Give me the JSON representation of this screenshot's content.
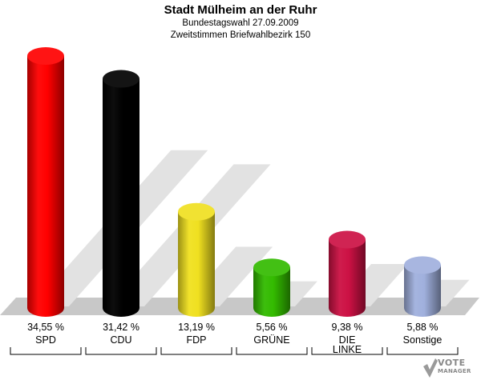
{
  "header": {
    "title": "Stadt Mülheim an der Ruhr",
    "subtitle1": "Bundestagswahl 27.09.2009",
    "subtitle2": "Zweitstimmen Briefwahlbezirk 150"
  },
  "logo": {
    "line1": "VOTE",
    "line2": "MANAGER"
  },
  "chart_data": {
    "type": "bar",
    "title": "Stadt Mülheim an der Ruhr",
    "subtitle": [
      "Bundestagswahl 27.09.2009",
      "Zweitstimmen Briefwahlbezirk 150"
    ],
    "categories": [
      "SPD",
      "CDU",
      "FDP",
      "GRÜNE",
      "DIE LINKE",
      "Sonstige"
    ],
    "values": [
      34.55,
      31.42,
      13.19,
      5.56,
      9.38,
      5.88
    ],
    "value_labels": [
      "34,55 %",
      "31,42 %",
      "13,19 %",
      "5,56 %",
      "9,38 %",
      "5,88 %"
    ],
    "category_labels": [
      [
        "SPD"
      ],
      [
        "CDU"
      ],
      [
        "FDP"
      ],
      [
        "GRÜNE"
      ],
      [
        "DIE",
        "LINKE"
      ],
      [
        "Sonstige"
      ]
    ],
    "colors": [
      "#ff0000",
      "#000000",
      "#f0e020",
      "#33bb00",
      "#cc1144",
      "#a0b0dd"
    ],
    "ylim": [
      0,
      34.55
    ],
    "grid": false,
    "legend": "none"
  }
}
